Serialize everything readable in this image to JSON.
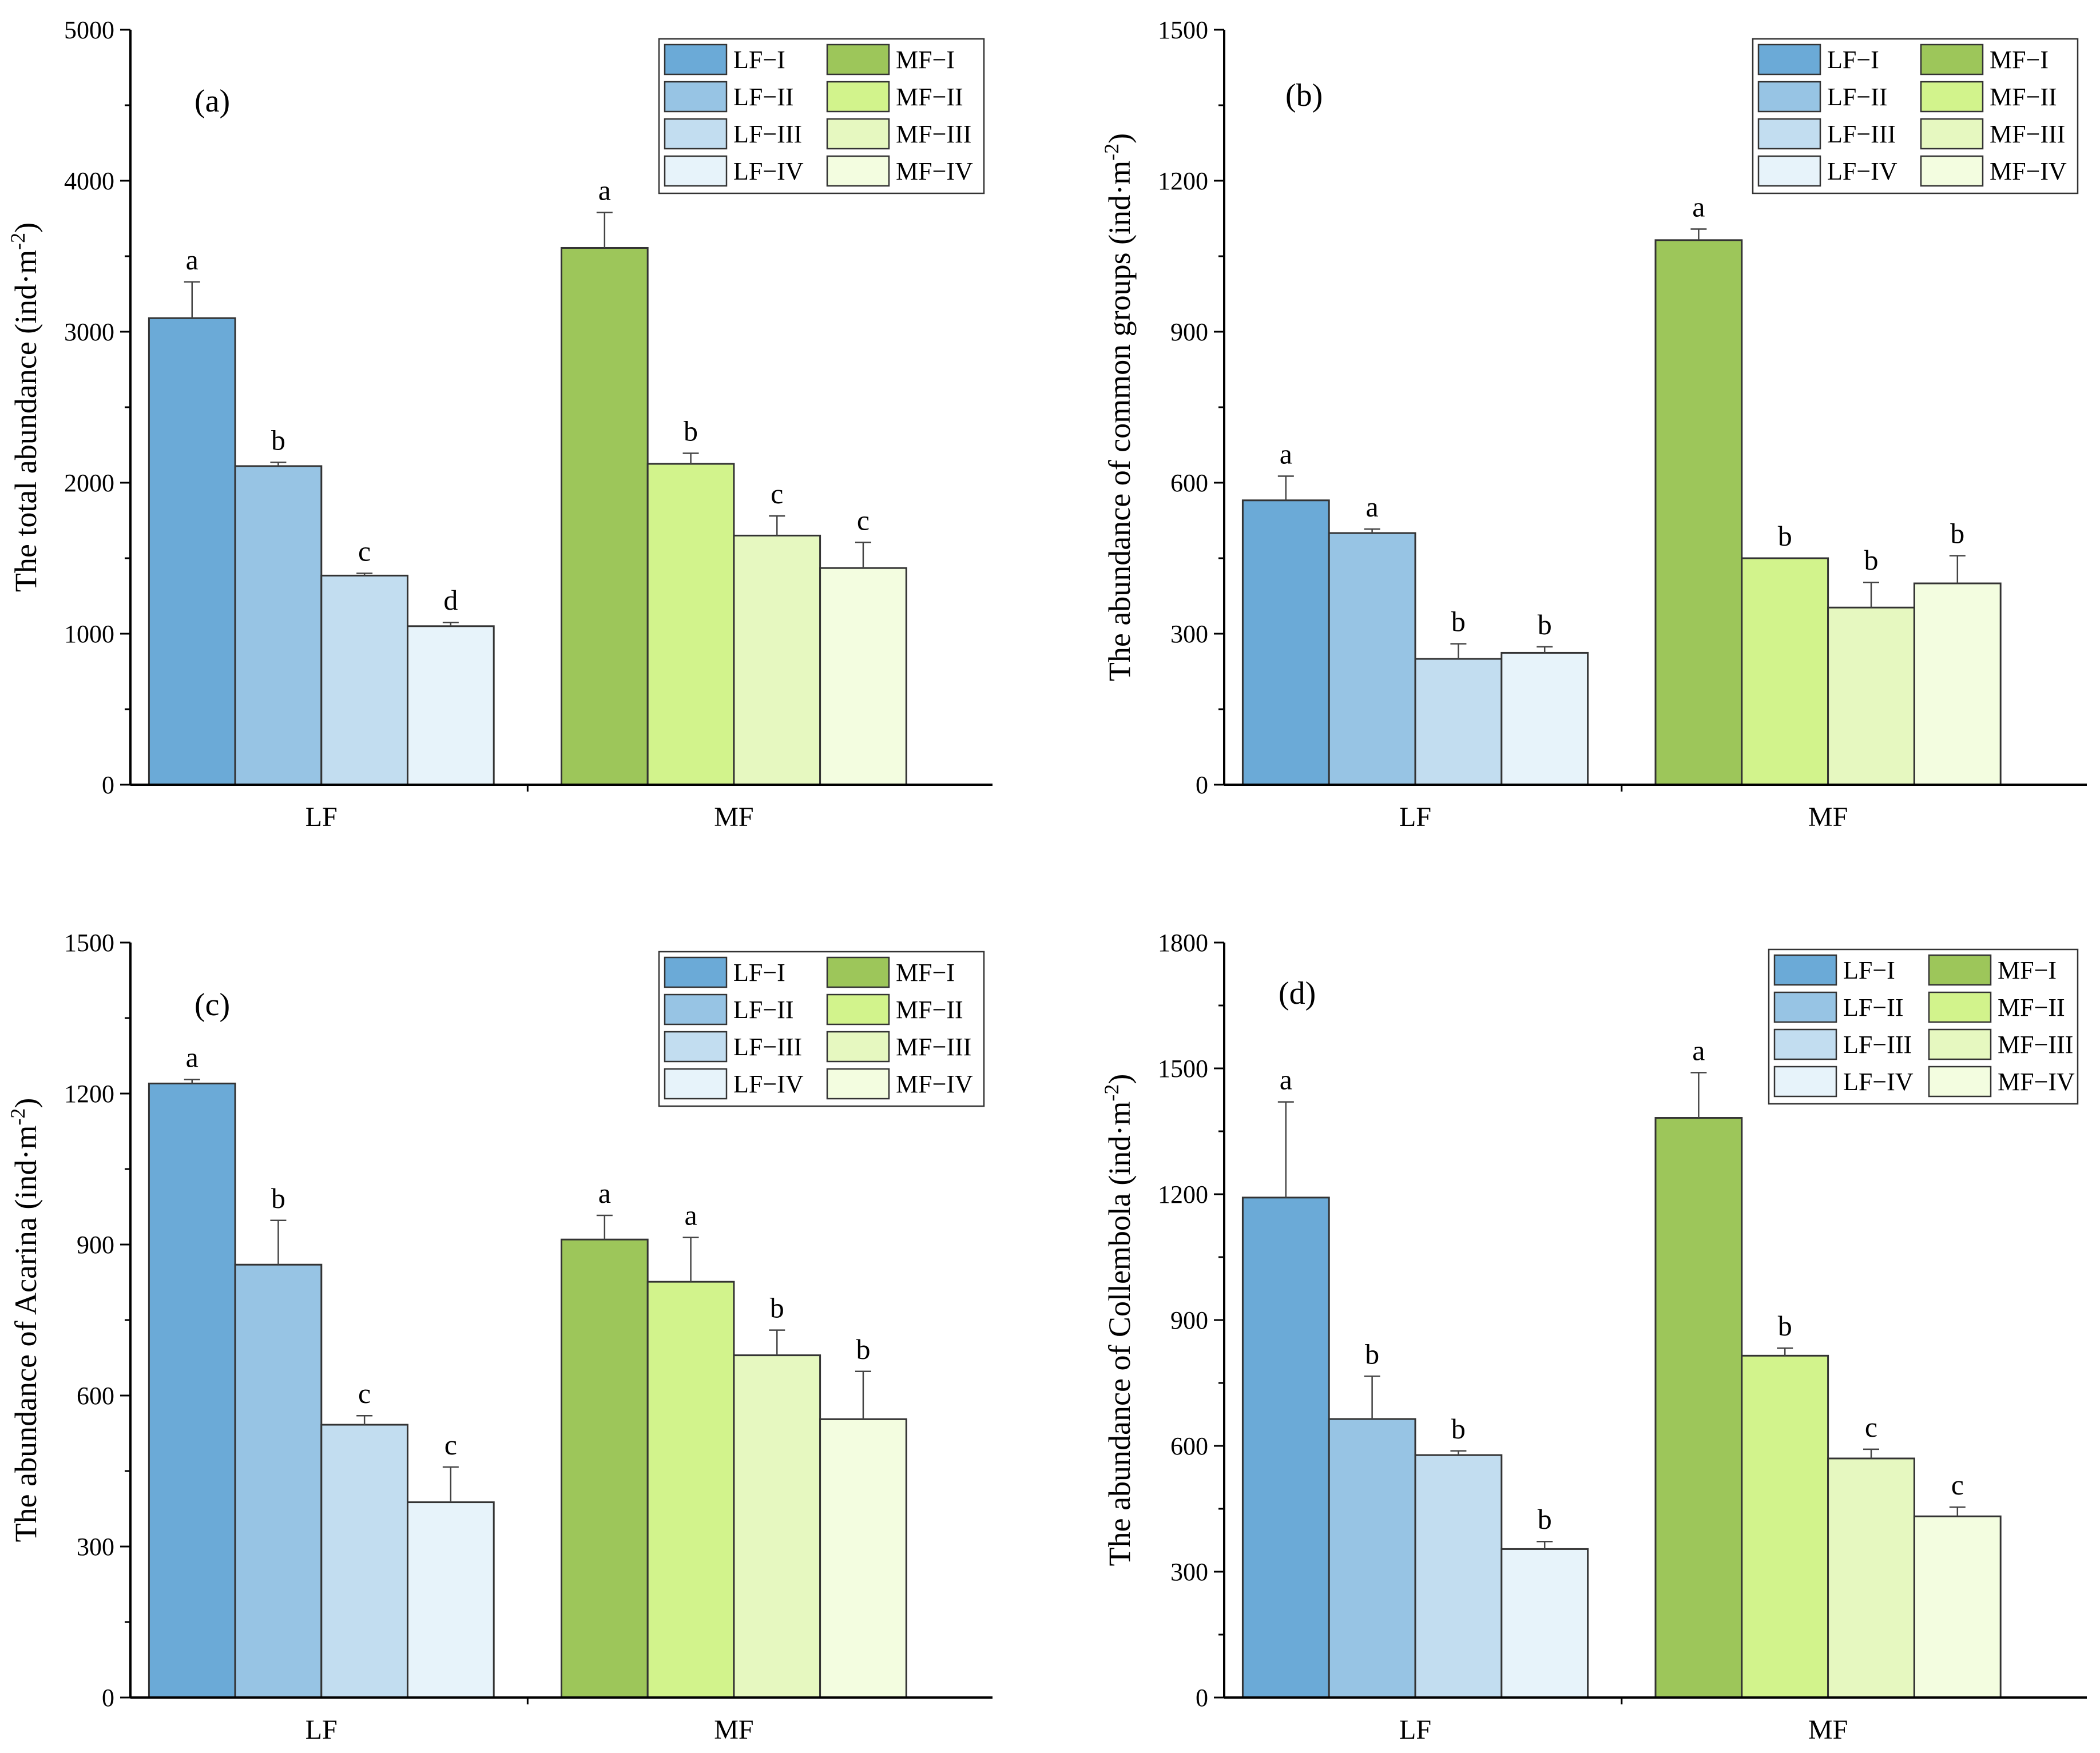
{
  "series": [
    {
      "name": "LF−I",
      "color": "#6baad7"
    },
    {
      "name": "LF−II",
      "color": "#97c4e4"
    },
    {
      "name": "LF−III",
      "color": "#c2ddf0"
    },
    {
      "name": "LF−IV",
      "color": "#e7f3fa"
    },
    {
      "name": "MF−I",
      "color": "#9dc65a"
    },
    {
      "name": "MF−II",
      "color": "#d2f38c"
    },
    {
      "name": "MF−III",
      "color": "#e6f8c0"
    },
    {
      "name": "MF−IV",
      "color": "#f3fde0"
    }
  ],
  "colors": {
    "axis": "#000000",
    "bar_edge": "#333333"
  },
  "chart_data": [
    {
      "type": "bar",
      "panel_label": "(a)",
      "ylabel": "The total abundance (ind·m",
      "ylabel_sup": "-2",
      "ylabel_suffix": ")",
      "ylim": [
        0,
        5000
      ],
      "yticks": [
        0,
        1000,
        2000,
        3000,
        4000,
        5000
      ],
      "categories": [
        "LF",
        "MF"
      ],
      "groups": [
        {
          "category": "LF",
          "values": [
            3090,
            2110,
            1385,
            1050
          ],
          "errors": [
            240,
            25,
            15,
            25
          ],
          "letters": [
            "a",
            "b",
            "c",
            "d"
          ]
        },
        {
          "category": "MF",
          "values": [
            3555,
            2125,
            1650,
            1435
          ],
          "errors": [
            235,
            70,
            130,
            170
          ],
          "letters": [
            "a",
            "b",
            "c",
            "c"
          ]
        }
      ],
      "legend_position": "top-right"
    },
    {
      "type": "bar",
      "panel_label": "(b)",
      "ylabel": "The abundance of common groups (ind·m",
      "ylabel_sup": "-2",
      "ylabel_suffix": ")",
      "ylim": [
        0,
        1500
      ],
      "yticks": [
        0,
        300,
        600,
        900,
        1200,
        1500
      ],
      "categories": [
        "LF",
        "MF"
      ],
      "groups": [
        {
          "category": "LF",
          "values": [
            565,
            500,
            250,
            262
          ],
          "errors": [
            48,
            8,
            30,
            12
          ],
          "letters": [
            "a",
            "a",
            "b",
            "b"
          ]
        },
        {
          "category": "MF",
          "values": [
            1082,
            450,
            352,
            400
          ],
          "errors": [
            22,
            0,
            50,
            55
          ],
          "letters": [
            "a",
            "b",
            "b",
            "b"
          ]
        }
      ],
      "legend_position": "top-right"
    },
    {
      "type": "bar",
      "panel_label": "(c)",
      "ylabel": "The abundance of Acarina (ind·m",
      "ylabel_sup": "-2",
      "ylabel_suffix": ")",
      "ylim": [
        0,
        1500
      ],
      "yticks": [
        0,
        300,
        600,
        900,
        1200,
        1500
      ],
      "categories": [
        "LF",
        "MF"
      ],
      "groups": [
        {
          "category": "LF",
          "values": [
            1220,
            860,
            542,
            388
          ],
          "errors": [
            8,
            88,
            18,
            70
          ],
          "letters": [
            "a",
            "b",
            "c",
            "c"
          ]
        },
        {
          "category": "MF",
          "values": [
            910,
            826,
            680,
            553
          ],
          "errors": [
            48,
            88,
            50,
            95
          ],
          "letters": [
            "a",
            "a",
            "b",
            "b"
          ]
        }
      ],
      "legend_position": "top-right"
    },
    {
      "type": "bar",
      "panel_label": "(d)",
      "ylabel": "The abundance of Collembola (ind·m",
      "ylabel_sup": "-2",
      "ylabel_suffix": ")",
      "ylim": [
        0,
        1800
      ],
      "yticks": [
        0,
        300,
        600,
        900,
        1200,
        1500,
        1800
      ],
      "categories": [
        "LF",
        "MF"
      ],
      "groups": [
        {
          "category": "LF",
          "values": [
            1192,
            664,
            578,
            354
          ],
          "errors": [
            228,
            102,
            10,
            18
          ],
          "letters": [
            "a",
            "b",
            "b",
            "b"
          ]
        },
        {
          "category": "MF",
          "values": [
            1382,
            815,
            570,
            432
          ],
          "errors": [
            108,
            18,
            22,
            22
          ],
          "letters": [
            "a",
            "b",
            "c",
            "c"
          ]
        }
      ],
      "legend_position": "top-right"
    }
  ]
}
